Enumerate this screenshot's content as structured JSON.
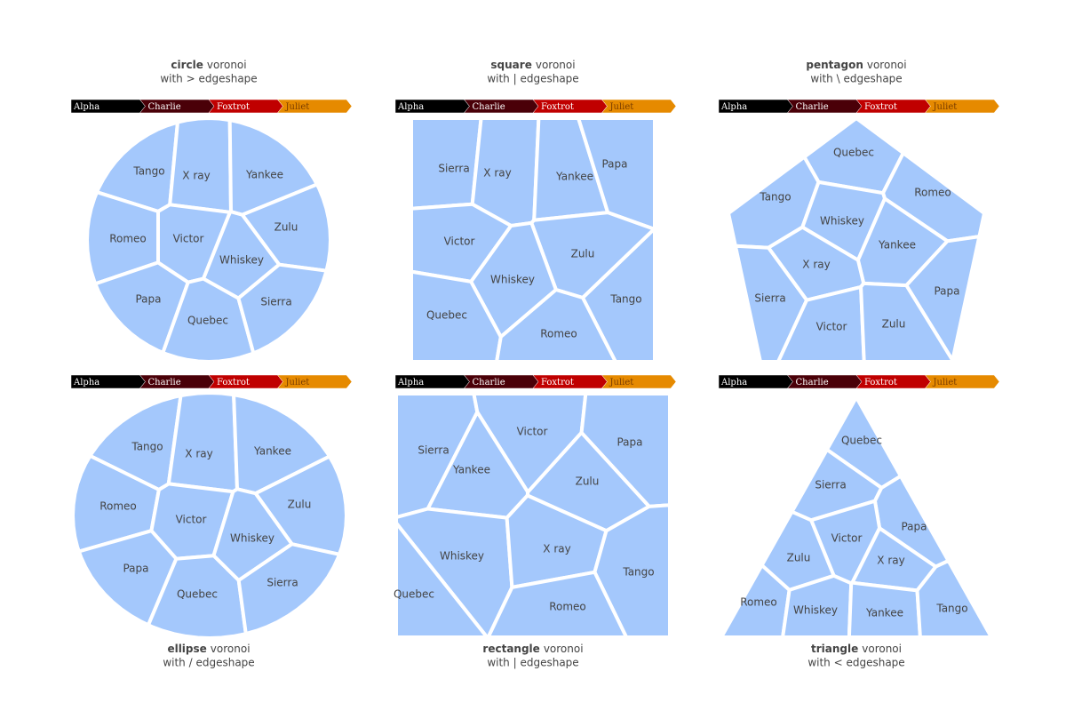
{
  "chart_data": [
    {
      "type": "voronoi",
      "shape": "circle",
      "title": "voronoi",
      "subtitle": "with > edgeshape",
      "pathbar": [
        "Alpha",
        "Charlie",
        "Foxtrot",
        "Juliet"
      ],
      "labels": [
        "Tango",
        "X ray",
        "Yankee",
        "Romeo",
        "Victor",
        "Zulu",
        "Whiskey",
        "Papa",
        "Quebec",
        "Sierra"
      ]
    },
    {
      "type": "voronoi",
      "shape": "square",
      "title": "voronoi",
      "subtitle": "with | edgeshape",
      "pathbar": [
        "Alpha",
        "Charlie",
        "Foxtrot",
        "Juliet"
      ],
      "labels": [
        "Sierra",
        "X ray",
        "Yankee",
        "Papa",
        "Victor",
        "Zulu",
        "Whiskey",
        "Tango",
        "Quebec",
        "Romeo"
      ]
    },
    {
      "type": "voronoi",
      "shape": "pentagon",
      "title": "voronoi",
      "subtitle": "with \\ edgeshape",
      "pathbar": [
        "Alpha",
        "Charlie",
        "Foxtrot",
        "Juliet"
      ],
      "labels": [
        "Quebec",
        "Romeo",
        "Tango",
        "Whiskey",
        "Yankee",
        "X ray",
        "Sierra",
        "Papa",
        "Victor",
        "Zulu"
      ]
    },
    {
      "type": "voronoi",
      "shape": "ellipse",
      "title": "voronoi",
      "subtitle": "with / edgeshape",
      "pathbar": [
        "Alpha",
        "Charlie",
        "Foxtrot",
        "Juliet"
      ],
      "labels": [
        "Tango",
        "X ray",
        "Yankee",
        "Romeo",
        "Victor",
        "Zulu",
        "Whiskey",
        "Papa",
        "Quebec",
        "Sierra"
      ]
    },
    {
      "type": "voronoi",
      "shape": "rectangle",
      "title": "voronoi",
      "subtitle": "with | edgeshape",
      "pathbar": [
        "Alpha",
        "Charlie",
        "Foxtrot",
        "Juliet"
      ],
      "labels": [
        "Sierra",
        "Victor",
        "Papa",
        "Yankee",
        "Zulu",
        "Whiskey",
        "X ray",
        "Tango",
        "Quebec",
        "Romeo"
      ]
    },
    {
      "type": "voronoi",
      "shape": "triangle",
      "title": "voronoi",
      "subtitle": "with < edgeshape",
      "pathbar": [
        "Alpha",
        "Charlie",
        "Foxtrot",
        "Juliet"
      ],
      "labels": [
        "Quebec",
        "Sierra",
        "Papa",
        "Victor",
        "Zulu",
        "X ray",
        "Romeo",
        "Whiskey",
        "Yankee",
        "Tango"
      ]
    }
  ]
}
